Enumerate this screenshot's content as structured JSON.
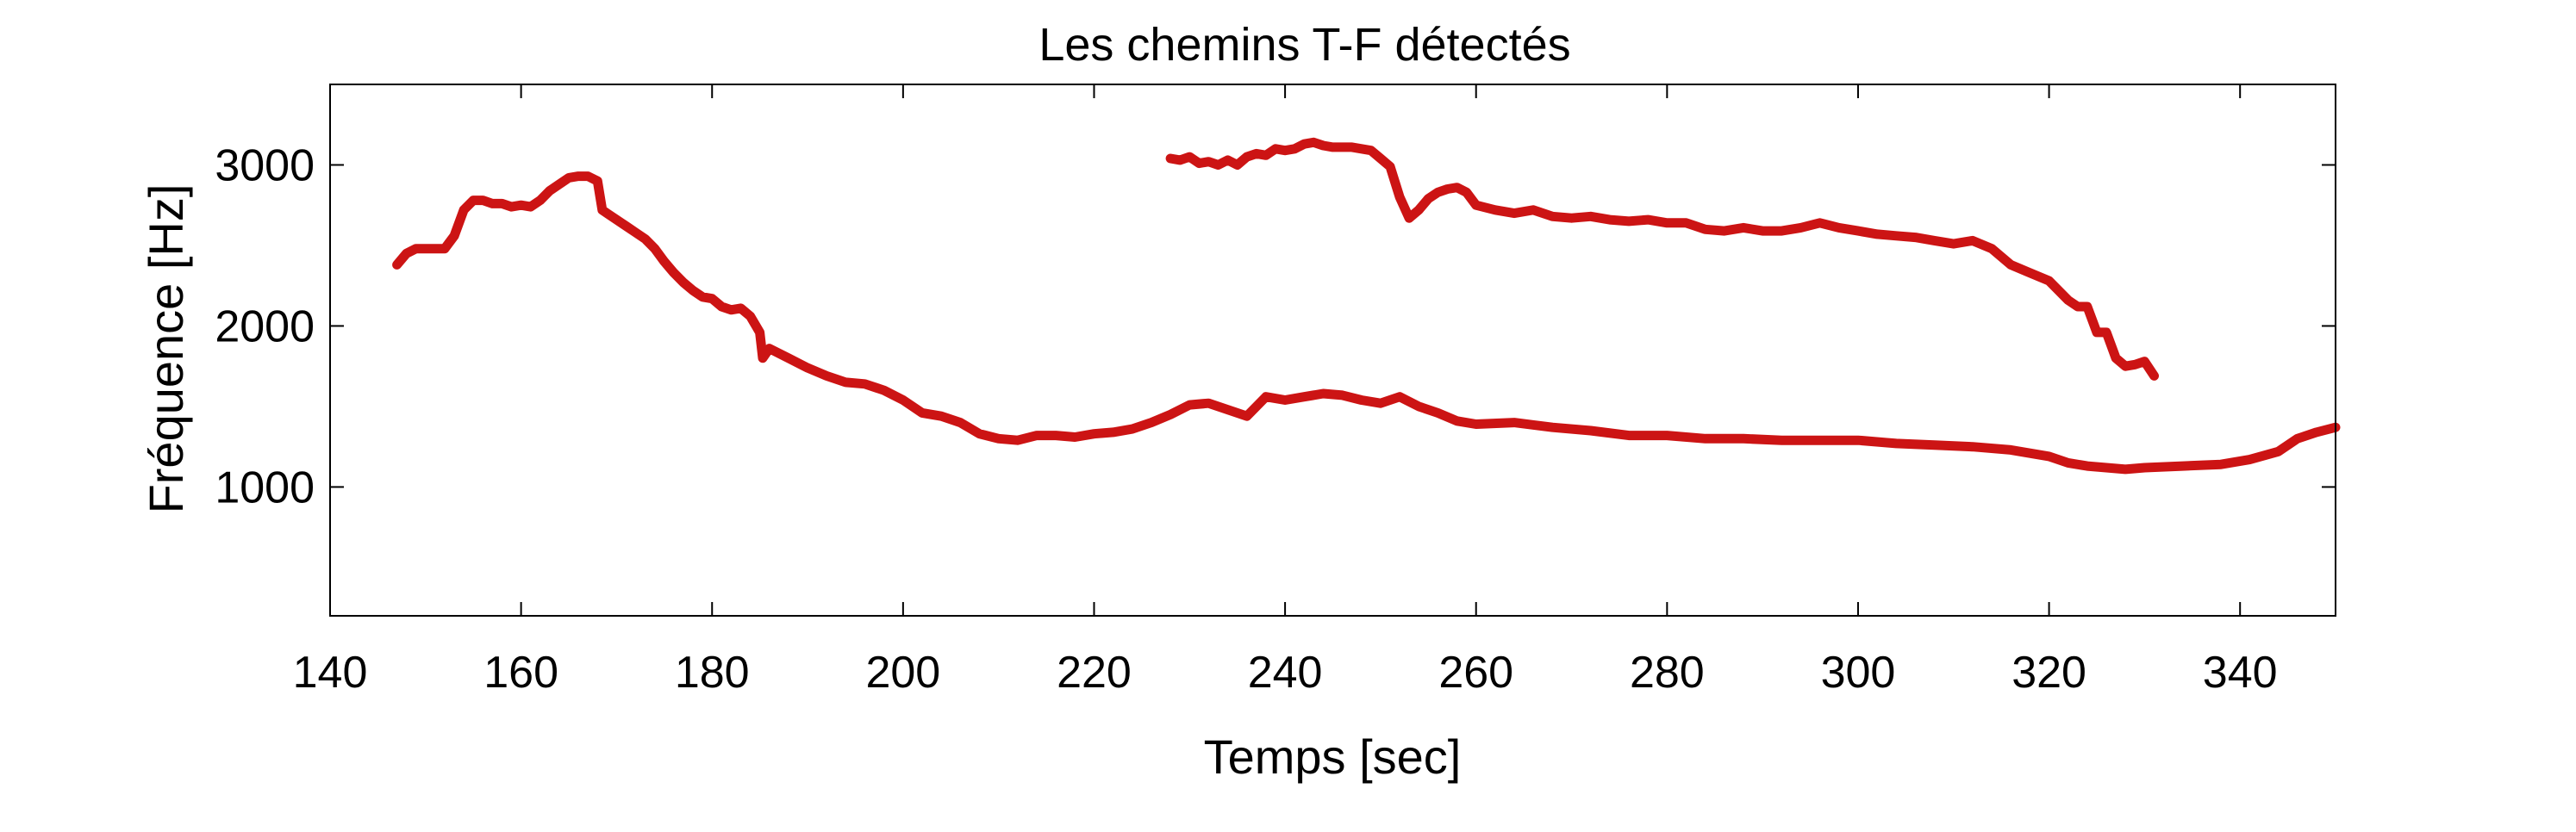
{
  "chart_data": {
    "type": "line",
    "title": "Les chemins T-F détectés",
    "xlabel": "Temps [sec]",
    "ylabel": "Fréquence [Hz]",
    "xlim": [
      140,
      350
    ],
    "ylim": [
      200,
      3500
    ],
    "x_ticks": [
      140,
      160,
      180,
      200,
      220,
      240,
      260,
      280,
      300,
      320,
      340
    ],
    "y_ticks": [
      1000,
      2000,
      3000
    ],
    "grid": false,
    "line_color": "#cc1414",
    "series": [
      {
        "x": [
          147,
          148,
          149,
          150,
          152,
          153,
          154,
          155,
          156,
          157,
          158,
          159,
          160,
          161,
          162,
          163,
          164,
          165,
          166,
          167,
          168,
          168.5,
          169,
          170,
          171,
          172,
          173,
          174,
          175,
          176,
          177,
          178,
          179,
          180,
          181,
          182,
          183,
          184,
          185,
          185.3,
          186,
          188,
          190,
          192,
          194,
          196,
          198,
          200,
          202,
          204,
          206,
          208,
          210,
          212,
          214,
          216,
          218,
          220,
          222,
          224,
          226,
          228,
          230,
          232,
          234,
          236,
          238,
          240,
          242,
          244,
          246,
          248,
          250,
          252,
          254,
          256,
          258,
          260,
          264,
          268,
          272,
          276,
          280,
          284,
          288,
          292,
          296,
          300,
          304,
          308,
          312,
          316,
          320,
          322,
          324,
          326,
          328,
          330,
          334,
          338,
          341,
          344,
          346,
          348,
          350
        ],
        "y": [
          2380,
          2450,
          2480,
          2480,
          2480,
          2560,
          2720,
          2780,
          2780,
          2760,
          2760,
          2740,
          2750,
          2740,
          2780,
          2840,
          2880,
          2920,
          2930,
          2930,
          2900,
          2720,
          2700,
          2660,
          2620,
          2580,
          2540,
          2480,
          2400,
          2330,
          2270,
          2220,
          2180,
          2170,
          2120,
          2100,
          2110,
          2060,
          1960,
          1800,
          1860,
          1800,
          1740,
          1690,
          1650,
          1640,
          1600,
          1540,
          1460,
          1440,
          1400,
          1330,
          1300,
          1290,
          1320,
          1320,
          1310,
          1330,
          1340,
          1360,
          1400,
          1450,
          1510,
          1520,
          1480,
          1440,
          1560,
          1540,
          1560,
          1580,
          1570,
          1540,
          1520,
          1560,
          1500,
          1460,
          1410,
          1390,
          1400,
          1370,
          1350,
          1320,
          1320,
          1300,
          1300,
          1290,
          1290,
          1290,
          1270,
          1260,
          1250,
          1230,
          1190,
          1150,
          1130,
          1120,
          1110,
          1120,
          1130,
          1140,
          1170,
          1220,
          1300,
          1340,
          1370
        ]
      },
      {
        "x": [
          228,
          229,
          230,
          231,
          232,
          233,
          234,
          235,
          236,
          237,
          238,
          239,
          240,
          241,
          242,
          243,
          244,
          245,
          246,
          247,
          248,
          249,
          250,
          251,
          252,
          253,
          254,
          255,
          256,
          257,
          258,
          259,
          260,
          262,
          264,
          266,
          268,
          270,
          272,
          274,
          276,
          278,
          280,
          282,
          284,
          286,
          288,
          290,
          292,
          294,
          296,
          298,
          300,
          302,
          304,
          306,
          308,
          310,
          312,
          314,
          316,
          318,
          320,
          322,
          323,
          324,
          325,
          326,
          327,
          328,
          329,
          330,
          331
        ],
        "y": [
          3040,
          3030,
          3050,
          3010,
          3020,
          3000,
          3030,
          3000,
          3050,
          3070,
          3060,
          3100,
          3090,
          3100,
          3130,
          3140,
          3120,
          3110,
          3110,
          3110,
          3100,
          3090,
          3040,
          2990,
          2800,
          2670,
          2720,
          2790,
          2830,
          2850,
          2860,
          2830,
          2750,
          2720,
          2700,
          2720,
          2680,
          2670,
          2680,
          2660,
          2650,
          2660,
          2640,
          2640,
          2600,
          2590,
          2610,
          2590,
          2590,
          2610,
          2640,
          2610,
          2590,
          2570,
          2560,
          2550,
          2530,
          2510,
          2530,
          2480,
          2380,
          2330,
          2280,
          2160,
          2120,
          2120,
          1960,
          1960,
          1800,
          1750,
          1760,
          1780,
          1690
        ]
      }
    ]
  }
}
